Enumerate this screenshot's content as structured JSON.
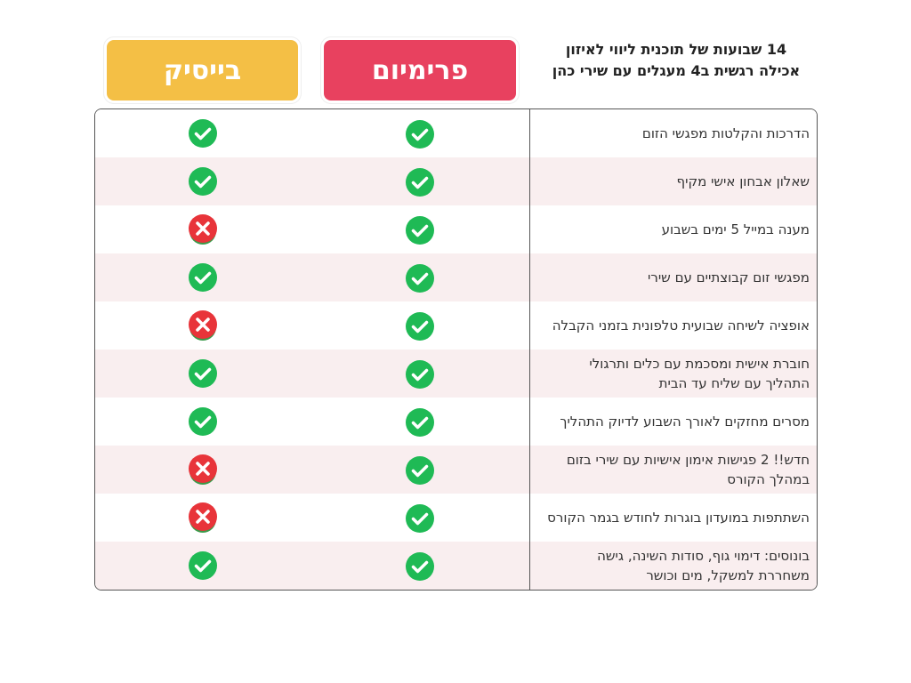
{
  "header": {
    "title": "14 שבועות של תוכנית ליווי לאיזון אכילה רגשית ב4 מעגלים עם שירי כהן",
    "plans": [
      "פרימיום",
      "בייסיק"
    ]
  },
  "table": {
    "rows": [
      {
        "feature": "הדרכות והקלטות מפגשי הזום",
        "premium": true,
        "basic": true
      },
      {
        "feature": "שאלון אבחון אישי מקיף",
        "premium": true,
        "basic": true
      },
      {
        "feature": "מענה במייל 5 ימים בשבוע",
        "premium": true,
        "basic": false
      },
      {
        "feature": "מפגשי זום קבוצתיים עם שירי",
        "premium": true,
        "basic": true
      },
      {
        "feature": "אופציה לשיחה שבועית טלפונית בזמני הקבלה",
        "premium": true,
        "basic": false
      },
      {
        "feature": "חוברת אישית ומסכמת עם כלים ותרגולי התהליך עם שליח עד הבית",
        "premium": true,
        "basic": true
      },
      {
        "feature": "מסרים מחזקים לאורך השבוע לדיוק התהליך",
        "premium": true,
        "basic": true
      },
      {
        "feature": "חדש!! 2 פגישות אימון אישיות עם שירי בזום במהלך הקורס",
        "premium": true,
        "basic": false
      },
      {
        "feature": "השתתפות במועדון בוגרות לחודש בגמר הקורס",
        "premium": true,
        "basic": false
      },
      {
        "feature": "בונוסים: דימוי גוף, סודות השינה, גישה משחררת למשקל, מים וכושר",
        "premium": true,
        "basic": true
      }
    ]
  }
}
